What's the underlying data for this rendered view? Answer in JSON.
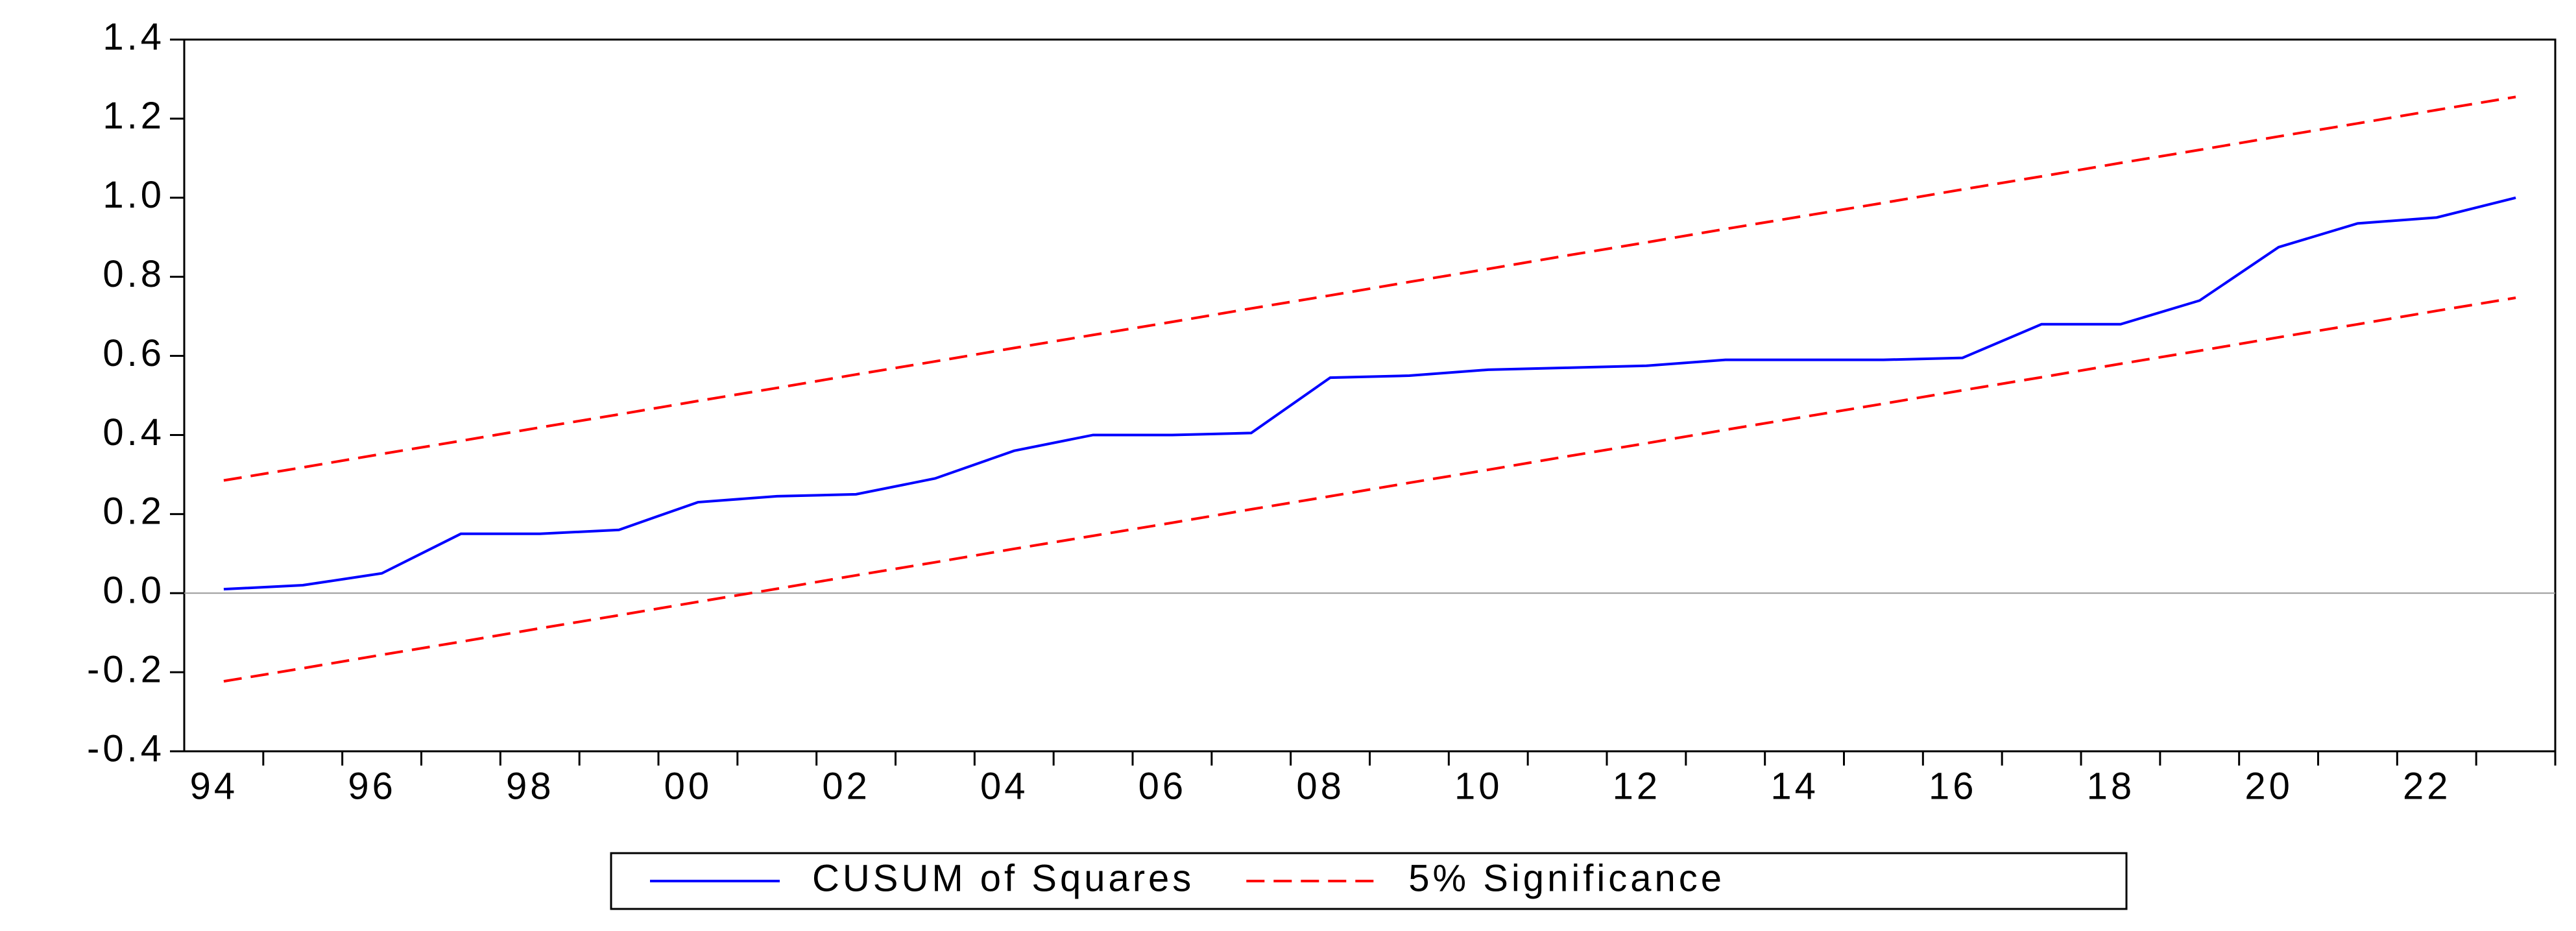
{
  "chart_data": {
    "type": "line",
    "categories": [
      "94",
      null,
      "96",
      null,
      "98",
      null,
      "00",
      null,
      "02",
      null,
      "04",
      null,
      "06",
      null,
      "08",
      null,
      "10",
      null,
      "12",
      null,
      "14",
      null,
      "16",
      null,
      "18",
      null,
      "20",
      null,
      "22",
      null
    ],
    "series": [
      {
        "name": "CUSUM of Squares",
        "color": "#0000ff",
        "dashed": false,
        "values": [
          0.01,
          0.02,
          0.05,
          0.15,
          0.15,
          0.16,
          0.23,
          0.245,
          0.25,
          0.29,
          0.36,
          0.4,
          0.4,
          0.405,
          0.545,
          0.55,
          0.565,
          0.57,
          0.575,
          0.59,
          0.59,
          0.59,
          0.595,
          0.68,
          0.68,
          0.74,
          0.875,
          0.935,
          0.95,
          1.0
        ]
      },
      {
        "name": "5% Significance",
        "color": "#ff0000",
        "dashed": true,
        "values": [
          0.285,
          0.318,
          0.352,
          0.385,
          0.419,
          0.452,
          0.486,
          0.519,
          0.553,
          0.586,
          0.62,
          0.653,
          0.686,
          0.72,
          0.753,
          0.787,
          0.82,
          0.854,
          0.887,
          0.921,
          0.954,
          0.987,
          1.021,
          1.054,
          1.088,
          1.121,
          1.155,
          1.188,
          1.222,
          1.255
        ]
      },
      {
        "color": "#ff0000",
        "dashed": true,
        "values": [
          -0.223,
          -0.19,
          -0.156,
          -0.123,
          -0.089,
          -0.056,
          -0.022,
          0.011,
          0.045,
          0.078,
          0.112,
          0.145,
          0.178,
          0.212,
          0.245,
          0.279,
          0.312,
          0.346,
          0.379,
          0.413,
          0.446,
          0.479,
          0.513,
          0.546,
          0.58,
          0.613,
          0.647,
          0.68,
          0.714,
          0.747
        ]
      }
    ],
    "ylim": [
      -0.4,
      1.4
    ],
    "yticks": [
      {
        "value": 1.4,
        "label": "1.4"
      },
      {
        "value": 1.2,
        "label": "1.2"
      },
      {
        "value": 1.0,
        "label": "1.0"
      },
      {
        "value": 0.8,
        "label": "0.8"
      },
      {
        "value": 0.6,
        "label": "0.6"
      },
      {
        "value": 0.4,
        "label": "0.4"
      },
      {
        "value": 0.2,
        "label": "0.2"
      },
      {
        "value": 0.0,
        "label": "0.0"
      },
      {
        "value": -0.2,
        "label": "-0.2"
      },
      {
        "value": -0.4,
        "label": "-0.4"
      }
    ],
    "zero_line": true,
    "legend": "bottom"
  }
}
